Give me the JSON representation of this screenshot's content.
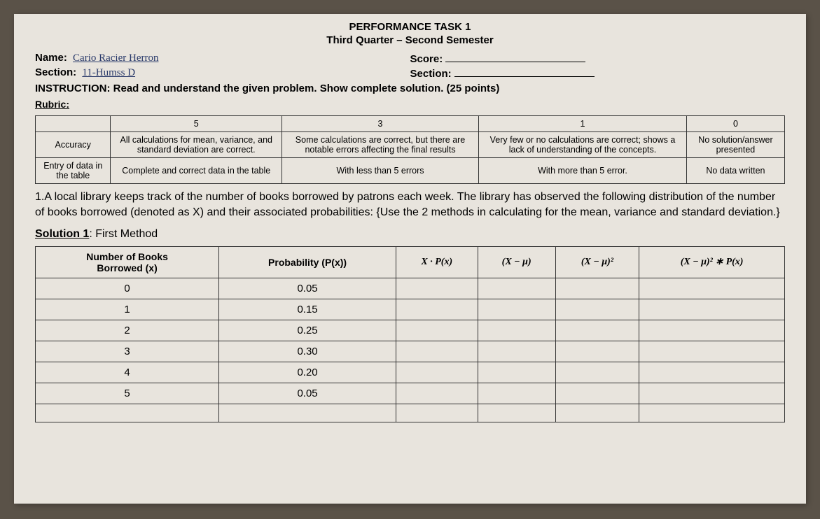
{
  "header": {
    "title": "PERFORMANCE TASK 1",
    "subtitle": "Third Quarter – Second Semester"
  },
  "info": {
    "name_label": "Name:",
    "name_value": "Cario   Racier   Herron",
    "section_label": "Section:",
    "section_value": "11-Humss   D",
    "score_label": "Score:",
    "section2_label": "Section:"
  },
  "instruction": "INSTRUCTION: Read and understand the given problem. Show complete solution. (25 points)",
  "rubric_label": "Rubric:",
  "rubric": {
    "headers": [
      "",
      "5",
      "3",
      "1",
      "0"
    ],
    "rows": [
      {
        "criterion": "Accuracy",
        "c5": "All calculations for mean, variance, and standard deviation are correct.",
        "c3": "Some calculations are correct, but there are notable errors affecting the final results",
        "c1": "Very few or no calculations are correct; shows a lack of understanding of the concepts.",
        "c0": "No solution/answer presented"
      },
      {
        "criterion": "Entry of data in the table",
        "c5": "Complete and correct data in the table",
        "c3": "With less than 5 errors",
        "c1": "With more than 5 error.",
        "c0": "No data written"
      }
    ]
  },
  "problem": "1.A local library keeps track of the number of books borrowed by patrons each week. The library has observed the following distribution of the number of books borrowed (denoted as X) and their associated probabilities: {Use the 2 methods in calculating for the mean, variance and standard deviation.}",
  "solution_label_underline": "Solution 1",
  "solution_label_rest": ": First Method",
  "data_table": {
    "headers": {
      "col1a": "Number of Books",
      "col1b": "Borrowed (x)",
      "col2": "Probability (P(x))",
      "col3": "X · P(x)",
      "col4": "(X − μ)",
      "col5": "(X − μ)²",
      "col6": "(X − μ)² ∗ P(x)"
    },
    "rows": [
      {
        "x": "0",
        "p": "0.05"
      },
      {
        "x": "1",
        "p": "0.15"
      },
      {
        "x": "2",
        "p": "0.25"
      },
      {
        "x": "3",
        "p": "0.30"
      },
      {
        "x": "4",
        "p": "0.20"
      },
      {
        "x": "5",
        "p": "0.05"
      },
      {
        "x": "",
        "p": ""
      }
    ]
  }
}
